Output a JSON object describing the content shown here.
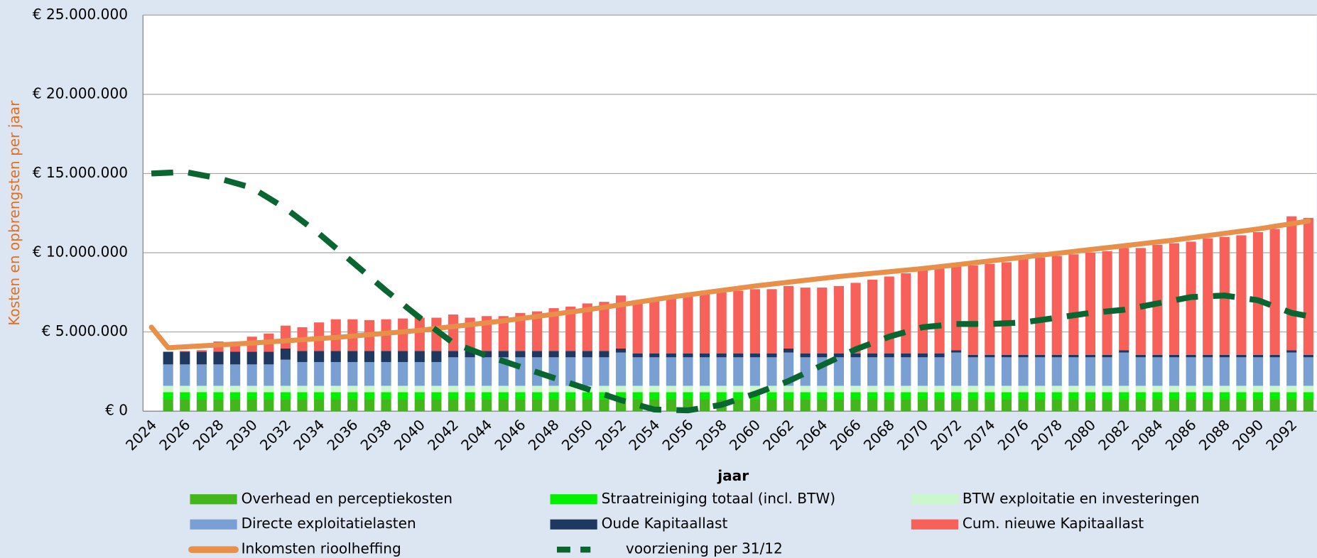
{
  "chart_data": {
    "type": "stacked-bar-line",
    "x_label": "jaar",
    "y_label": "Kosten en opbrengsten  per jaar",
    "ylim": [
      0,
      25000000
    ],
    "yticks": [
      {
        "value": 0,
        "label": "€ 0"
      },
      {
        "value": 5000000,
        "label": "€ 5.000.000"
      },
      {
        "value": 10000000,
        "label": "€ 10.000.000"
      },
      {
        "value": 15000000,
        "label": "€ 15.000.000"
      },
      {
        "value": 20000000,
        "label": "€ 20.000.000"
      },
      {
        "value": 25000000,
        "label": "€ 25.000.000"
      }
    ],
    "grid": true,
    "categories": [
      2024,
      null,
      2026,
      null,
      2028,
      null,
      2030,
      null,
      2032,
      null,
      2034,
      null,
      2036,
      null,
      2038,
      null,
      2040,
      null,
      2042,
      null,
      2044,
      null,
      2046,
      null,
      2048,
      null,
      2050,
      null,
      2052,
      null,
      2054,
      null,
      2056,
      null,
      2058,
      null,
      2060,
      null,
      2062,
      null,
      2064,
      null,
      2066,
      null,
      2068,
      null,
      2070,
      null,
      2072,
      null,
      2074,
      null,
      2076,
      null,
      2078,
      null,
      2080,
      null,
      2082,
      null,
      2084,
      null,
      2086,
      null,
      2088,
      null,
      2090,
      null,
      2092,
      null
    ],
    "series": [
      {
        "name": "Overhead en perceptiekosten",
        "color": "#44b51c",
        "kind": "bar",
        "values": [
          null,
          750000,
          750000,
          750000,
          750000,
          750000,
          750000,
          750000,
          750000,
          750000,
          750000,
          750000,
          750000,
          750000,
          750000,
          750000,
          750000,
          750000,
          750000,
          750000,
          750000,
          750000,
          750000,
          750000,
          750000,
          750000,
          750000,
          750000,
          750000,
          750000,
          750000,
          750000,
          750000,
          750000,
          750000,
          750000,
          750000,
          750000,
          750000,
          750000,
          750000,
          750000,
          750000,
          750000,
          750000,
          750000,
          750000,
          750000,
          750000,
          750000,
          750000,
          750000,
          750000,
          750000,
          750000,
          750000,
          750000,
          750000,
          750000,
          750000,
          750000,
          750000,
          750000,
          750000,
          750000,
          750000,
          750000,
          750000,
          750000,
          750000
        ]
      },
      {
        "name": "Straatreiniging totaal (incl. BTW)",
        "color": "#00f000",
        "kind": "bar",
        "values": [
          null,
          450000,
          450000,
          450000,
          450000,
          450000,
          450000,
          450000,
          450000,
          450000,
          450000,
          450000,
          450000,
          450000,
          450000,
          450000,
          450000,
          450000,
          450000,
          450000,
          450000,
          450000,
          450000,
          450000,
          450000,
          450000,
          450000,
          450000,
          450000,
          450000,
          450000,
          450000,
          450000,
          450000,
          450000,
          450000,
          450000,
          450000,
          450000,
          450000,
          450000,
          450000,
          450000,
          450000,
          450000,
          450000,
          450000,
          450000,
          450000,
          450000,
          450000,
          450000,
          450000,
          450000,
          450000,
          450000,
          450000,
          450000,
          450000,
          450000,
          450000,
          450000,
          450000,
          450000,
          450000,
          450000,
          450000,
          450000,
          450000,
          450000
        ]
      },
      {
        "name": "BTW exploitatie en investeringen",
        "color": "#ccf7cc",
        "kind": "bar",
        "values": [
          null,
          400000,
          400000,
          400000,
          400000,
          400000,
          400000,
          400000,
          400000,
          400000,
          400000,
          400000,
          400000,
          400000,
          400000,
          400000,
          400000,
          400000,
          400000,
          400000,
          400000,
          400000,
          400000,
          400000,
          400000,
          400000,
          400000,
          400000,
          400000,
          400000,
          400000,
          400000,
          400000,
          400000,
          400000,
          400000,
          400000,
          400000,
          400000,
          400000,
          400000,
          400000,
          400000,
          400000,
          400000,
          400000,
          400000,
          400000,
          400000,
          400000,
          400000,
          400000,
          400000,
          400000,
          400000,
          400000,
          400000,
          400000,
          400000,
          400000,
          400000,
          400000,
          400000,
          400000,
          400000,
          400000,
          400000,
          400000,
          400000,
          400000
        ]
      },
      {
        "name": "Directe exploitatielasten",
        "color": "#7a9fd3",
        "kind": "bar",
        "values": [
          null,
          1350000,
          1350000,
          1350000,
          1350000,
          1350000,
          1350000,
          1350000,
          1650000,
          1500000,
          1500000,
          1500000,
          1500000,
          1500000,
          1500000,
          1500000,
          1500000,
          1500000,
          1800000,
          1800000,
          1800000,
          1800000,
          1800000,
          1800000,
          1800000,
          1800000,
          1800000,
          1800000,
          2100000,
          1800000,
          1800000,
          1800000,
          1800000,
          1800000,
          1800000,
          1800000,
          1800000,
          1800000,
          2100000,
          1800000,
          1800000,
          1800000,
          1800000,
          1800000,
          1800000,
          1800000,
          1800000,
          1800000,
          2100000,
          1800000,
          1800000,
          1800000,
          1800000,
          1800000,
          1800000,
          1800000,
          1800000,
          1800000,
          2100000,
          1800000,
          1800000,
          1800000,
          1800000,
          1800000,
          1800000,
          1800000,
          1800000,
          1800000,
          2100000,
          1800000
        ]
      },
      {
        "name": "Oude Kapitaallast",
        "color": "#1f3860",
        "kind": "bar",
        "values": [
          null,
          800000,
          800000,
          800000,
          800000,
          800000,
          800000,
          800000,
          700000,
          700000,
          700000,
          700000,
          700000,
          700000,
          700000,
          700000,
          700000,
          700000,
          400000,
          400000,
          400000,
          400000,
          400000,
          400000,
          400000,
          400000,
          400000,
          400000,
          250000,
          250000,
          250000,
          250000,
          250000,
          250000,
          250000,
          250000,
          250000,
          250000,
          250000,
          250000,
          250000,
          250000,
          250000,
          250000,
          250000,
          250000,
          250000,
          250000,
          150000,
          150000,
          150000,
          150000,
          150000,
          150000,
          150000,
          150000,
          150000,
          150000,
          150000,
          150000,
          150000,
          150000,
          150000,
          150000,
          150000,
          150000,
          150000,
          150000,
          150000,
          150000
        ]
      },
      {
        "name": "Cum. nieuwe Kapitaallast",
        "color": "#f8605a",
        "kind": "bar",
        "values": [
          null,
          0,
          50000,
          100000,
          650000,
          450000,
          950000,
          1150000,
          1450000,
          1500000,
          1800000,
          2000000,
          2000000,
          1950000,
          2000000,
          2050000,
          2100000,
          2100000,
          2300000,
          2100000,
          2200000,
          2200000,
          2400000,
          2500000,
          2700000,
          2800000,
          3000000,
          3100000,
          3350000,
          3350000,
          3450000,
          3550000,
          3650000,
          3750000,
          3850000,
          3950000,
          4050000,
          4050000,
          3950000,
          4150000,
          4150000,
          4250000,
          4450000,
          4650000,
          4850000,
          5050000,
          5250000,
          5350000,
          5350000,
          5650000,
          5750000,
          5850000,
          6050000,
          6150000,
          6250000,
          6350000,
          6450000,
          6550000,
          6450000,
          6750000,
          6950000,
          7050000,
          7150000,
          7350000,
          7450000,
          7550000,
          7750000,
          7950000,
          8450000,
          8650000
        ]
      },
      {
        "name": "Inkomsten rioolheffing",
        "color": "#e8904a",
        "kind": "line",
        "dash": false,
        "values": [
          5300000,
          4000000,
          4060000,
          4120000,
          4180000,
          4240000,
          4300000,
          4370000,
          4440000,
          4510000,
          4580000,
          4650000,
          4740000,
          4830000,
          4920000,
          5010000,
          5100000,
          5220000,
          5340000,
          5460000,
          5580000,
          5700000,
          5840000,
          5980000,
          6120000,
          6260000,
          6400000,
          6560000,
          6720000,
          6880000,
          7040000,
          7200000,
          7340000,
          7480000,
          7620000,
          7760000,
          7900000,
          8020000,
          8140000,
          8260000,
          8380000,
          8500000,
          8600000,
          8700000,
          8800000,
          8900000,
          9000000,
          9120000,
          9240000,
          9360000,
          9480000,
          9600000,
          9720000,
          9840000,
          9960000,
          10080000,
          10200000,
          10320000,
          10440000,
          10560000,
          10680000,
          10800000,
          10940000,
          11080000,
          11220000,
          11360000,
          11500000,
          11670000,
          11830000,
          12000000
        ]
      },
      {
        "name": "voorziening per 31/12",
        "color": "#0a6630",
        "kind": "line",
        "dash": true,
        "values": [
          15000000,
          15050000,
          15100000,
          14900000,
          14700000,
          14400000,
          14100000,
          13450000,
          12800000,
          12000000,
          11200000,
          10300000,
          9400000,
          8500000,
          7600000,
          6750000,
          5900000,
          5100000,
          4300000,
          3900000,
          3500000,
          3150000,
          2800000,
          2450000,
          2100000,
          1750000,
          1400000,
          1050000,
          700000,
          400000,
          100000,
          75000,
          50000,
          225000,
          400000,
          750000,
          1100000,
          1500000,
          1900000,
          2400000,
          2900000,
          3400000,
          3900000,
          4300000,
          4700000,
          5000000,
          5300000,
          5400000,
          5500000,
          5500000,
          5500000,
          5550000,
          5600000,
          5750000,
          5900000,
          6050000,
          6200000,
          6300000,
          6400000,
          6600000,
          6800000,
          7000000,
          7200000,
          7250000,
          7300000,
          7150000,
          7000000,
          6600000,
          6200000,
          6000000
        ]
      }
    ]
  }
}
